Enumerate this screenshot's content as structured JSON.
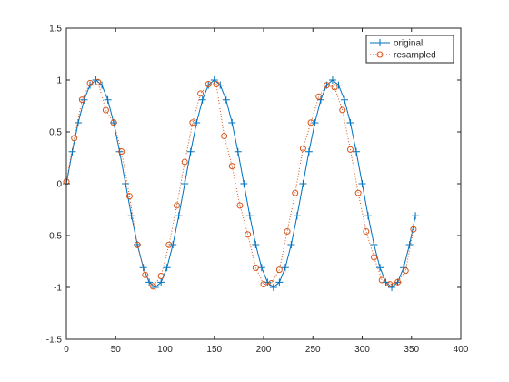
{
  "chart_data": {
    "type": "line",
    "title": "",
    "xlabel": "",
    "ylabel": "",
    "xlim": [
      0,
      400
    ],
    "ylim": [
      -1.5,
      1.5
    ],
    "x_ticks": [
      0,
      50,
      100,
      150,
      200,
      250,
      300,
      350,
      400
    ],
    "x_tick_labels": [
      "0",
      "50",
      "100",
      "150",
      "200",
      "250",
      "300",
      "350",
      "400"
    ],
    "y_ticks": [
      -1.5,
      -1,
      -0.5,
      0,
      0.5,
      1,
      1.5
    ],
    "y_tick_labels": [
      "-1.5",
      "-1",
      "-0.5",
      "0",
      "0.5",
      "1",
      "1.5"
    ],
    "grid": false,
    "legend_position": "top-right",
    "series": [
      {
        "name": "original",
        "color": "#0072bd",
        "marker": "plus",
        "line_style": "solid",
        "x": [
          0,
          6,
          12,
          18,
          24,
          30,
          36,
          42,
          48,
          54,
          60,
          66,
          72,
          78,
          84,
          90,
          96,
          102,
          108,
          114,
          120,
          126,
          132,
          138,
          144,
          150,
          156,
          162,
          168,
          174,
          180,
          186,
          192,
          198,
          204,
          210,
          216,
          222,
          228,
          234,
          240,
          246,
          252,
          258,
          264,
          270,
          276,
          282,
          288,
          294,
          300,
          306,
          312,
          318,
          324,
          330,
          336,
          342,
          348,
          354
        ],
        "y": [
          0,
          0.309,
          0.588,
          0.809,
          0.951,
          1,
          0.951,
          0.809,
          0.588,
          0.309,
          0,
          -0.309,
          -0.588,
          -0.809,
          -0.951,
          -1,
          -0.951,
          -0.809,
          -0.588,
          -0.309,
          0,
          0.309,
          0.588,
          0.809,
          0.951,
          1,
          0.951,
          0.809,
          0.588,
          0.309,
          0,
          -0.309,
          -0.588,
          -0.809,
          -0.951,
          -1,
          -0.951,
          -0.809,
          -0.588,
          -0.309,
          0,
          0.309,
          0.588,
          0.809,
          0.951,
          1,
          0.951,
          0.809,
          0.588,
          0.309,
          0,
          -0.309,
          -0.588,
          -0.809,
          -0.951,
          -1,
          -0.951,
          -0.809,
          -0.588,
          -0.309
        ]
      },
      {
        "name": "resampled",
        "color": "#d95319",
        "marker": "circle",
        "line_style": "dotted",
        "x": [
          0,
          8,
          16,
          24,
          32,
          40,
          48,
          56,
          64,
          72,
          80,
          88,
          96,
          104,
          112,
          120,
          128,
          136,
          144,
          152,
          160,
          168,
          176,
          184,
          192,
          200,
          208,
          216,
          224,
          232,
          240,
          248,
          256,
          264,
          272,
          280,
          288,
          296,
          304,
          312,
          320,
          328,
          336,
          344,
          352
        ],
        "y": [
          0.02,
          0.44,
          0.81,
          0.97,
          0.98,
          0.71,
          0.59,
          0.31,
          -0.12,
          -0.59,
          -0.88,
          -0.99,
          -0.89,
          -0.59,
          -0.21,
          0.21,
          0.59,
          0.87,
          0.96,
          0.96,
          0.46,
          0.17,
          -0.21,
          -0.49,
          -0.81,
          -0.97,
          -0.96,
          -0.83,
          -0.46,
          -0.09,
          0.34,
          0.59,
          0.84,
          0.95,
          0.93,
          0.71,
          0.33,
          -0.09,
          -0.46,
          -0.71,
          -0.93,
          -0.97,
          -0.95,
          -0.84,
          -0.44
        ]
      }
    ]
  }
}
